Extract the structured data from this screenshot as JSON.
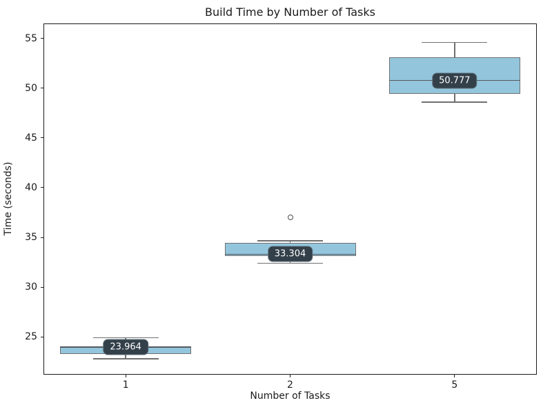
{
  "chart_data": {
    "type": "box",
    "title": "Build Time by Number of Tasks",
    "xlabel": "Number of Tasks",
    "ylabel": "Time (seconds)",
    "categories": [
      "1",
      "2",
      "5"
    ],
    "boxes": [
      {
        "category": "1",
        "whisker_low": 22.8,
        "q1": 23.3,
        "median": 23.964,
        "q3": 24.05,
        "whisker_high": 24.9,
        "outliers": [],
        "median_label": "23.964"
      },
      {
        "category": "2",
        "whisker_low": 32.4,
        "q1": 33.15,
        "median": 33.304,
        "q3": 34.45,
        "whisker_high": 34.65,
        "outliers": [
          37.0
        ],
        "median_label": "33.304"
      },
      {
        "category": "5",
        "whisker_low": 48.6,
        "q1": 49.45,
        "median": 50.777,
        "q3": 53.1,
        "whisker_high": 54.6,
        "outliers": [],
        "median_label": "50.777"
      }
    ],
    "y_ticks": [
      "25",
      "30",
      "35",
      "40",
      "45",
      "50",
      "55"
    ],
    "ylim": [
      21.2,
      56.5
    ],
    "grid": false,
    "legend": null,
    "colors": {
      "box_fill": "#93c6dd",
      "box_edge": "#6f6f6f",
      "whisker": "#6f6f6f",
      "median_line": "#55595c",
      "outlier_edge": "#4d4d4d",
      "label_bg": "#33404a",
      "label_border": "#5e6d77",
      "label_text": "#ffffff"
    }
  }
}
